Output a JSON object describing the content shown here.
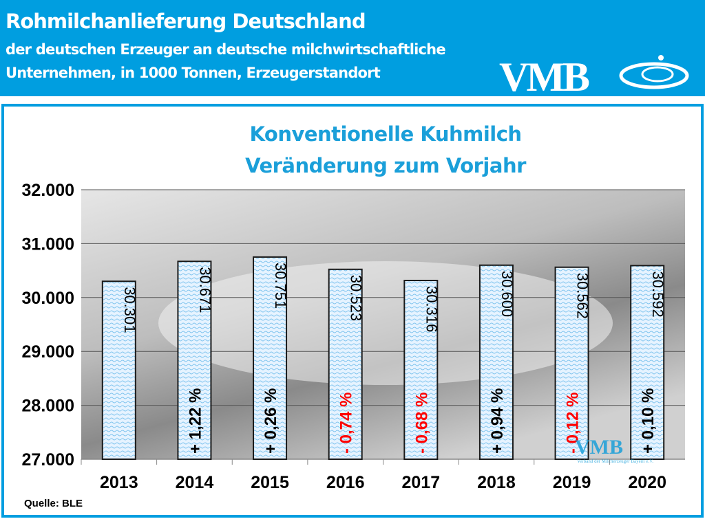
{
  "header": {
    "title": "Rohmilchanlieferung Deutschland",
    "subtitle_line1": "der deutschen Erzeuger an deutsche milchwirtschaftliche",
    "subtitle_line2": "Unternehmen, in 1000 Tonnen, Erzeugerstandort",
    "logo": "VMB"
  },
  "colors": {
    "brand": "#009ee0",
    "bar_fill": "#dcefff",
    "bar_stroke": "#1a1a1a",
    "negative": "#ff0000",
    "positive": "#000000"
  },
  "watermark": {
    "logo": "VMB",
    "text": "Verband der Milcherzeuger Bayern e.V."
  },
  "source": "Quelle: BLE",
  "chart_data": {
    "type": "bar",
    "title": "Konventionelle Kuhmilch",
    "subtitle": "Veränderung zum Vorjahr",
    "categories": [
      "2013",
      "2014",
      "2015",
      "2016",
      "2017",
      "2018",
      "2019",
      "2020"
    ],
    "values": [
      30301,
      30671,
      30751,
      30523,
      30316,
      30600,
      30562,
      30592
    ],
    "value_labels": [
      "30.301",
      "30.671",
      "30.751",
      "30.523",
      "30.316",
      "30.600",
      "30.562",
      "30.592"
    ],
    "change_labels": [
      "",
      "+ 1,22 %",
      "+ 0,26 %",
      "- 0,74 %",
      "- 0,68 %",
      "+ 0,94 %",
      "- 0,12 %",
      "+ 0,10 %"
    ],
    "ylim": [
      27000,
      32000
    ],
    "yticks": [
      27000,
      28000,
      29000,
      30000,
      31000,
      32000
    ],
    "ytick_labels": [
      "27.000",
      "28.000",
      "29.000",
      "30.000",
      "31.000",
      "32.000"
    ],
    "grid": true,
    "background": "milk-splash-photo"
  }
}
